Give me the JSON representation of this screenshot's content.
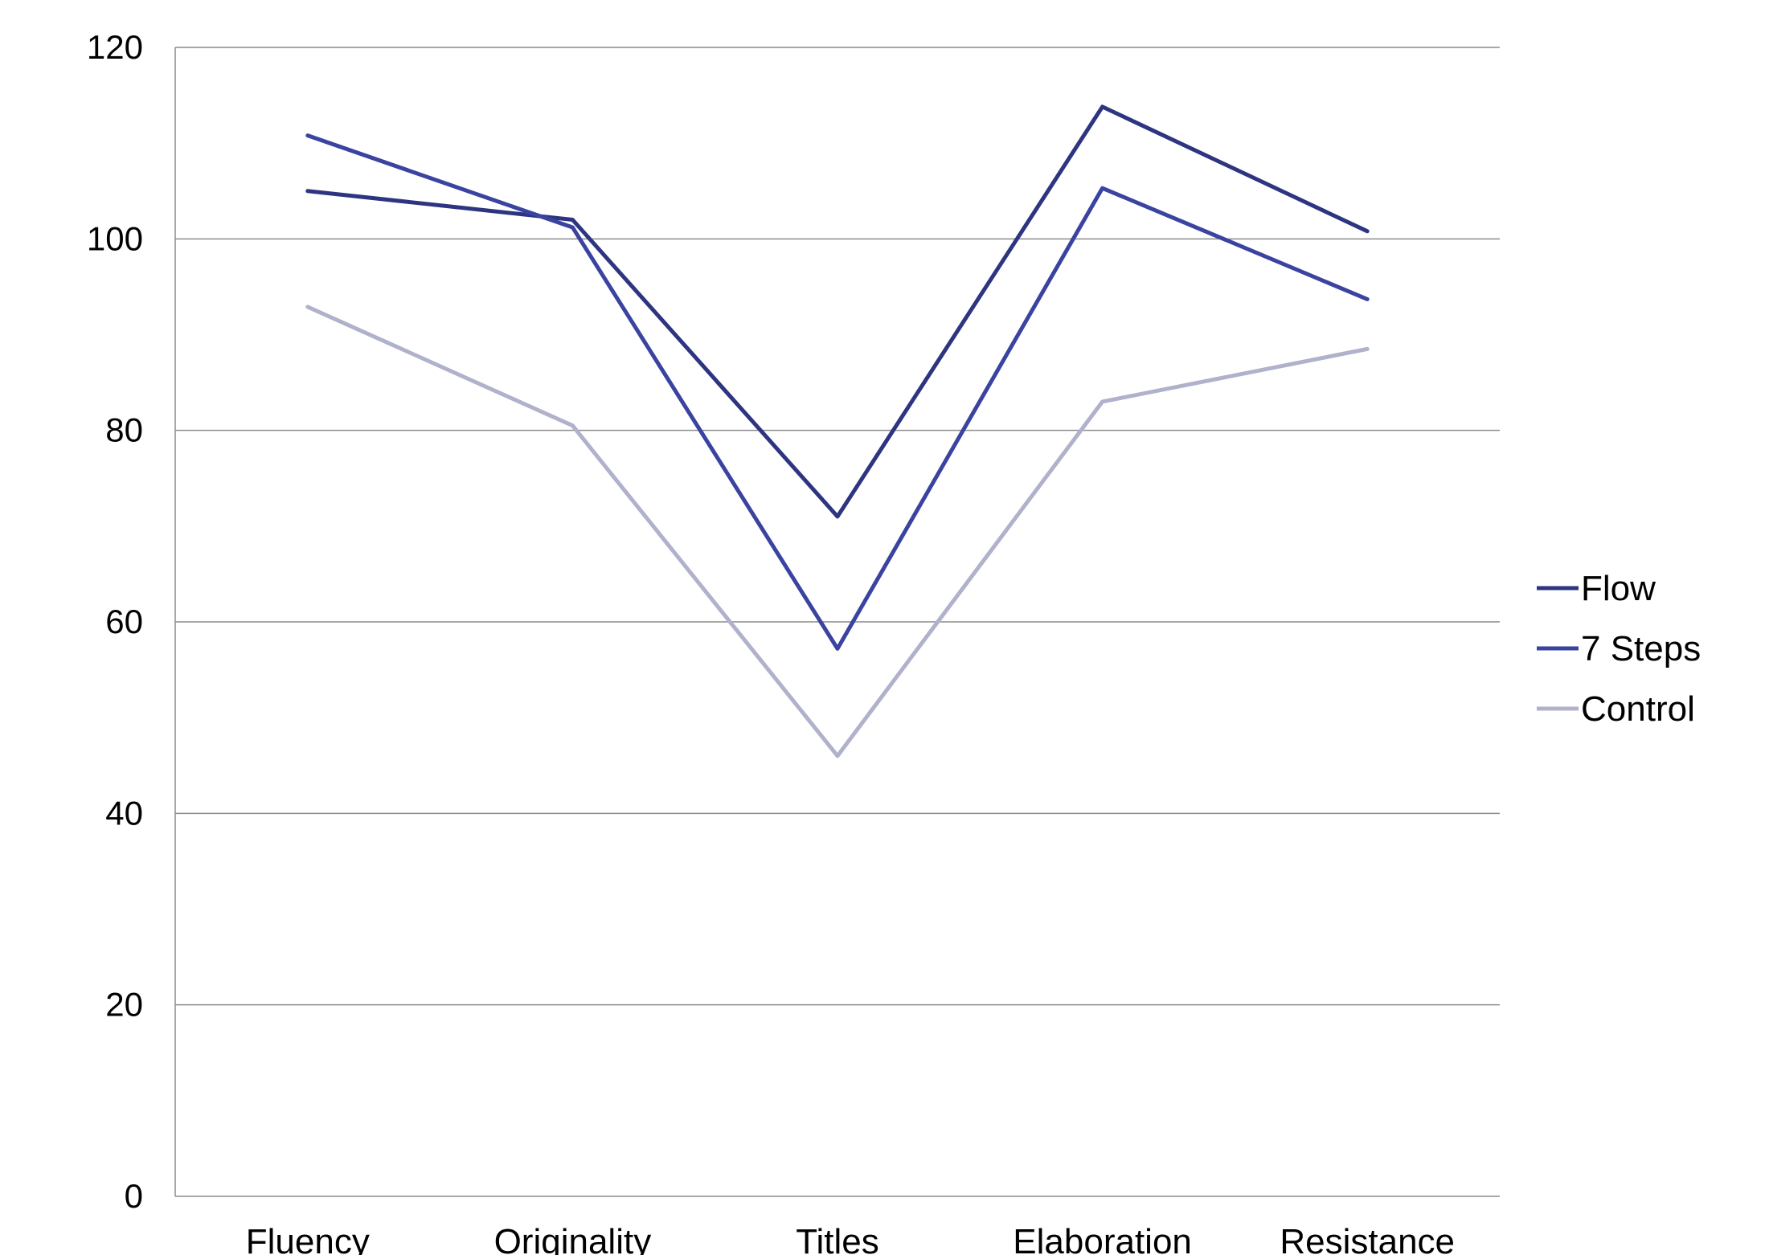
{
  "chart_data": {
    "type": "line",
    "title": "",
    "xlabel": "",
    "ylabel": "",
    "categories": [
      "Fluency",
      "Originality",
      "Titles",
      "Elaboration",
      "Resistance"
    ],
    "ylim": [
      0,
      120
    ],
    "yticks": [
      0,
      20,
      40,
      60,
      80,
      100,
      120
    ],
    "grid": true,
    "legend_position": "right",
    "series": [
      {
        "name": "Flow",
        "values": [
          105,
          102,
          71,
          113.8,
          100.8
        ],
        "color": "#2e3580"
      },
      {
        "name": "7 Steps",
        "values": [
          110.8,
          101.2,
          57.2,
          105.3,
          93.7
        ],
        "color": "#3a44a0"
      },
      {
        "name": "Control",
        "values": [
          92.9,
          80.5,
          46,
          83,
          88.5
        ],
        "color": "#b0b2cc"
      }
    ]
  },
  "style": {
    "gridline_color": "#8c8c8c",
    "axis_color": "#8c8c8c"
  }
}
